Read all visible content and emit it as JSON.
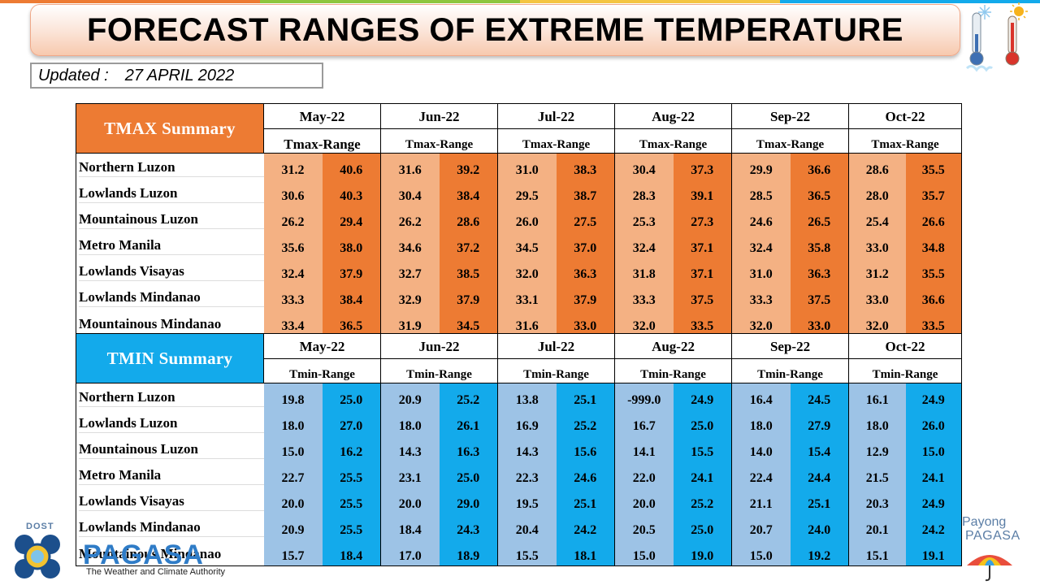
{
  "header": {
    "title": "FORECAST RANGES OF EXTREME TEMPERATURE",
    "updated_label": "Updated :",
    "updated_date": "27 APRIL 2022"
  },
  "months": [
    "May-22",
    "Jun-22",
    "Jul-22",
    "Aug-22",
    "Sep-22",
    "Oct-22"
  ],
  "tmax": {
    "title": "TMAX Summary",
    "range_label": "Tmax-Range",
    "rows": [
      {
        "region": "Northern Luzon",
        "values": [
          "31.2",
          "40.6",
          "31.6",
          "39.2",
          "31.0",
          "38.3",
          "30.4",
          "37.3",
          "29.9",
          "36.6",
          "28.6",
          "35.5"
        ]
      },
      {
        "region": "Lowlands Luzon",
        "values": [
          "30.6",
          "40.3",
          "30.4",
          "38.4",
          "29.5",
          "38.7",
          "28.3",
          "39.1",
          "28.5",
          "36.5",
          "28.0",
          "35.7"
        ]
      },
      {
        "region": "Mountainous Luzon",
        "values": [
          "26.2",
          "29.4",
          "26.2",
          "28.6",
          "26.0",
          "27.5",
          "25.3",
          "27.3",
          "24.6",
          "26.5",
          "25.4",
          "26.6"
        ]
      },
      {
        "region": "Metro Manila",
        "values": [
          "35.6",
          "38.0",
          "34.6",
          "37.2",
          "34.5",
          "37.0",
          "32.4",
          "37.1",
          "32.4",
          "35.8",
          "33.0",
          "34.8"
        ]
      },
      {
        "region": "Lowlands Visayas",
        "values": [
          "32.4",
          "37.9",
          "32.7",
          "38.5",
          "32.0",
          "36.3",
          "31.8",
          "37.1",
          "31.0",
          "36.3",
          "31.2",
          "35.5"
        ]
      },
      {
        "region": "Lowlands Mindanao",
        "values": [
          "33.3",
          "38.4",
          "32.9",
          "37.9",
          "33.1",
          "37.9",
          "33.3",
          "37.5",
          "33.3",
          "37.5",
          "33.0",
          "36.6"
        ]
      },
      {
        "region": "Mountainous Mindanao",
        "values": [
          "33.4",
          "36.5",
          "31.9",
          "34.5",
          "31.6",
          "33.0",
          "32.0",
          "33.5",
          "32.0",
          "33.0",
          "32.0",
          "33.5"
        ]
      }
    ]
  },
  "tmin": {
    "title": "TMIN Summary",
    "range_label": "Tmin-Range",
    "rows": [
      {
        "region": "Northern Luzon",
        "values": [
          "19.8",
          "25.0",
          "20.9",
          "25.2",
          "13.8",
          "25.1",
          "-999.0",
          "24.9",
          "16.4",
          "24.5",
          "16.1",
          "24.9"
        ]
      },
      {
        "region": "Lowlands Luzon",
        "values": [
          "18.0",
          "27.0",
          "18.0",
          "26.1",
          "16.9",
          "25.2",
          "16.7",
          "25.0",
          "18.0",
          "27.9",
          "18.0",
          "26.0"
        ]
      },
      {
        "region": "Mountainous Luzon",
        "values": [
          "15.0",
          "16.2",
          "14.3",
          "16.3",
          "14.3",
          "15.6",
          "14.1",
          "15.5",
          "14.0",
          "15.4",
          "12.9",
          "15.0"
        ]
      },
      {
        "region": "Metro Manila",
        "values": [
          "22.7",
          "25.5",
          "23.1",
          "25.0",
          "22.3",
          "24.6",
          "22.0",
          "24.1",
          "22.4",
          "24.4",
          "21.5",
          "24.1"
        ]
      },
      {
        "region": "Lowlands Visayas",
        "values": [
          "20.0",
          "25.5",
          "20.0",
          "29.0",
          "19.5",
          "25.1",
          "20.0",
          "25.2",
          "21.1",
          "25.1",
          "20.3",
          "24.9"
        ]
      },
      {
        "region": "Lowlands Mindanao",
        "values": [
          "20.9",
          "25.5",
          "18.4",
          "24.3",
          "20.4",
          "24.2",
          "20.5",
          "25.0",
          "20.7",
          "24.0",
          "20.1",
          "24.2"
        ]
      },
      {
        "region": "Mountainous Mindanao",
        "values": [
          "15.7",
          "18.4",
          "17.0",
          "18.9",
          "15.5",
          "18.1",
          "15.0",
          "19.0",
          "15.0",
          "19.2",
          "15.1",
          "19.1"
        ]
      }
    ]
  },
  "footer": {
    "dost": "DOST",
    "agency": "PAGASA",
    "tagline": "The Weather and Climate Authority",
    "payong": "Payong",
    "payong_pagasa": "PAGASA"
  },
  "icons": [
    "cold-thermometer-icon",
    "hot-thermometer-icon",
    "pagasa-logo-icon",
    "umbrella-icon"
  ],
  "colors": {
    "tmax_header": "#ed7b33",
    "tmax_low": "#f4b183",
    "tmax_high": "#ed7b33",
    "tmin_header": "#13aaeb",
    "tmin_low": "#9dc3e6",
    "tmin_high": "#13aaeb"
  }
}
